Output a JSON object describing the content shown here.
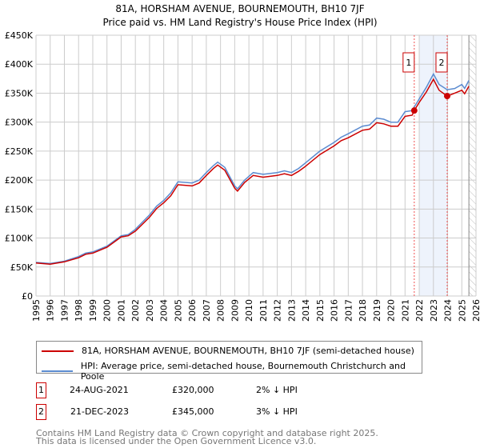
{
  "chart_data": {
    "type": "line",
    "title": "81A, HORSHAM AVENUE, BOURNEMOUTH, BH10 7JF",
    "subtitle": "Price paid vs. HM Land Registry's House Price Index (HPI)",
    "xlim": [
      1995,
      2026
    ],
    "ylim": [
      0,
      450000
    ],
    "x_ticks": [
      "1995",
      "1996",
      "1997",
      "1998",
      "1999",
      "2000",
      "2001",
      "2002",
      "2003",
      "2004",
      "2005",
      "2006",
      "2007",
      "2008",
      "2009",
      "2010",
      "2011",
      "2012",
      "2013",
      "2014",
      "2015",
      "2016",
      "2017",
      "2018",
      "2019",
      "2020",
      "2021",
      "2022",
      "2023",
      "2024",
      "2025",
      "2026"
    ],
    "y_ticks": [
      {
        "v": 0,
        "label": "£0"
      },
      {
        "v": 50000,
        "label": "£50K"
      },
      {
        "v": 100000,
        "label": "£100K"
      },
      {
        "v": 150000,
        "label": "£150K"
      },
      {
        "v": 200000,
        "label": "£200K"
      },
      {
        "v": 250000,
        "label": "£250K"
      },
      {
        "v": 300000,
        "label": "£300K"
      },
      {
        "v": 350000,
        "label": "£350K"
      },
      {
        "v": 400000,
        "label": "£400K"
      },
      {
        "v": 450000,
        "label": "£450K"
      }
    ],
    "grid": true,
    "series": [
      {
        "name": "81A, HORSHAM AVENUE, BOURNEMOUTH, BH10 7JF (semi-detached house)",
        "color": "#cc0000",
        "x": [
          1995,
          1996,
          1997,
          1998,
          1998.5,
          1999,
          2000,
          2001,
          2001.5,
          2002,
          2003,
          2003.5,
          2004,
          2004.5,
          2005,
          2006,
          2006.5,
          2007,
          2007.5,
          2007.8,
          2008.3,
          2009,
          2009.2,
          2009.7,
          2010.3,
          2011,
          2012,
          2012.5,
          2013,
          2013.5,
          2014,
          2015,
          2016,
          2016.5,
          2017,
          2018,
          2018.5,
          2019,
          2019.5,
          2020,
          2020.5,
          2021,
          2021.5,
          2021.65,
          2022,
          2022.5,
          2023,
          2023.4,
          2023.97,
          2024.5,
          2025,
          2025.2,
          2025.5
        ],
        "y": [
          57000,
          55000,
          59000,
          66000,
          72000,
          74000,
          84000,
          102000,
          104000,
          112000,
          136000,
          151000,
          161000,
          173000,
          192000,
          190000,
          195000,
          208000,
          220000,
          226000,
          217000,
          186000,
          181000,
          196000,
          208000,
          205000,
          208000,
          211000,
          208000,
          215000,
          224000,
          244000,
          259000,
          268000,
          273000,
          286000,
          288000,
          299000,
          297000,
          293000,
          293000,
          310000,
          312000,
          320000,
          334000,
          352000,
          374000,
          355000,
          345000,
          350000,
          355000,
          349000,
          362000
        ]
      },
      {
        "name": "HPI: Average price, semi-detached house, Bournemouth Christchurch and Poole",
        "color": "#5b8bd0",
        "x": [
          1995,
          1996,
          1997,
          1998,
          1998.5,
          1999,
          2000,
          2001,
          2001.5,
          2002,
          2003,
          2003.5,
          2004,
          2004.5,
          2005,
          2006,
          2006.5,
          2007,
          2007.5,
          2007.8,
          2008.3,
          2009,
          2009.2,
          2009.7,
          2010.3,
          2011,
          2012,
          2012.5,
          2013,
          2013.5,
          2014,
          2015,
          2016,
          2016.5,
          2017,
          2018,
          2018.5,
          2019,
          2019.5,
          2020,
          2020.5,
          2021,
          2021.5,
          2021.65,
          2022,
          2022.5,
          2023,
          2023.4,
          2023.97,
          2024.5,
          2025,
          2025.2,
          2025.5
        ],
        "y": [
          58000,
          56000,
          60000,
          68000,
          74000,
          76000,
          86000,
          104000,
          106000,
          115000,
          140000,
          155000,
          165000,
          178000,
          197000,
          195000,
          200000,
          213000,
          225000,
          231000,
          222000,
          190000,
          185000,
          200000,
          213000,
          210000,
          213000,
          216000,
          213000,
          220000,
          230000,
          250000,
          265000,
          274000,
          280000,
          293000,
          295000,
          307000,
          305000,
          300000,
          300000,
          318000,
          320000,
          326000,
          340000,
          360000,
          383000,
          365000,
          356000,
          358000,
          365000,
          358000,
          372000
        ]
      }
    ],
    "sales": [
      {
        "label": "1",
        "x": 2021.65,
        "y": 320000,
        "date": "24-AUG-2021",
        "price": "£320,000",
        "hpi": "2% ↓ HPI"
      },
      {
        "label": "2",
        "x": 2023.97,
        "y": 345000,
        "date": "21-DEC-2023",
        "price": "£345,000",
        "hpi": "3% ↓ HPI"
      }
    ],
    "shaded_range": [
      2022.0,
      2023.97
    ],
    "forecast_from": 2025.5,
    "legend": "bottom"
  },
  "footer": {
    "line1": "Contains HM Land Registry data © Crown copyright and database right 2025.",
    "line2": "This data is licensed under the Open Government Licence v3.0."
  }
}
